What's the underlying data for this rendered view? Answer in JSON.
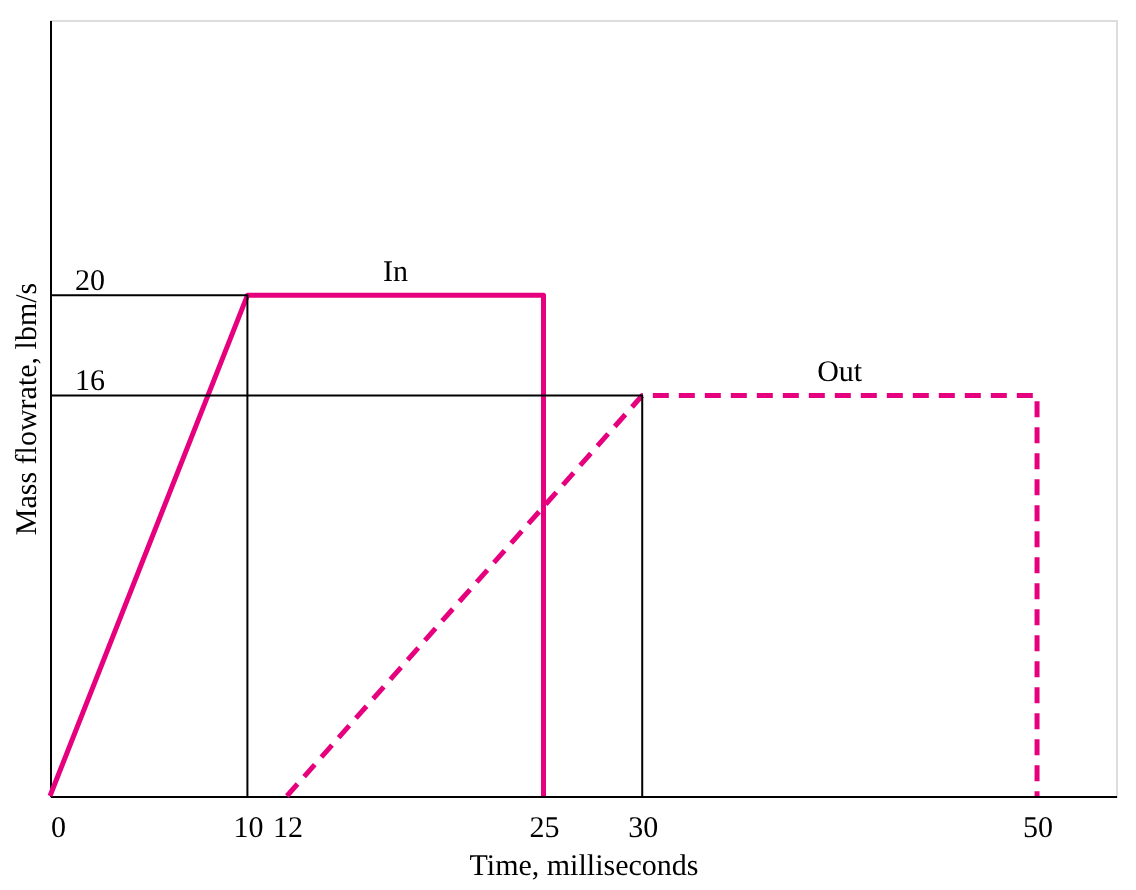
{
  "chart_data": {
    "type": "line",
    "xlabel": "Time, milliseconds",
    "ylabel": "Mass flowrate, lbm/s",
    "xlim": [
      0,
      54
    ],
    "ylim": [
      0,
      31
    ],
    "xticks": [
      0,
      10,
      12,
      25,
      30,
      50
    ],
    "yticks": [
      16,
      20
    ],
    "grid": false,
    "marker": "none",
    "series": [
      {
        "name": "In",
        "color": "#e6007e",
        "line_style": "solid",
        "x": [
          0,
          10,
          25,
          25
        ],
        "values": [
          0,
          20,
          20,
          0
        ]
      },
      {
        "name": "Out",
        "color": "#e6007e",
        "line_style": "dashed",
        "x": [
          12,
          30,
          50,
          50
        ],
        "values": [
          0,
          16,
          16,
          0
        ]
      },
      {
        "color": "#000000",
        "line_style": "solid",
        "x": [
          0,
          10,
          10
        ],
        "values": [
          20,
          20,
          0
        ]
      },
      {
        "color": "#000000",
        "line_style": "solid",
        "x": [
          0,
          30,
          30
        ],
        "values": [
          16,
          16,
          0
        ]
      }
    ]
  }
}
